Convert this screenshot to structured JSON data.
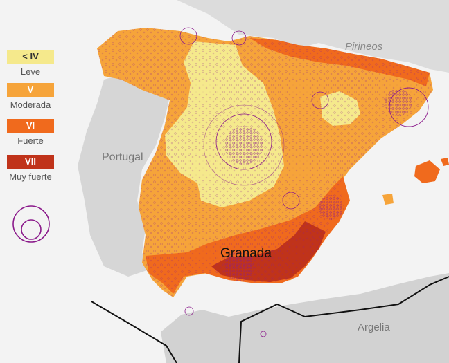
{
  "legend": {
    "items": [
      {
        "code": "< IV",
        "label": "Leve",
        "color": "#f5e98c",
        "text_color": "#333333"
      },
      {
        "code": "V",
        "label": "Moderada",
        "color": "#f6a43a",
        "text_color": "#ffffff"
      },
      {
        "code": "VI",
        "label": "Fuerte",
        "color": "#f06a1d",
        "text_color": "#ffffff"
      },
      {
        "code": "VII",
        "label": "Muy fuerte",
        "color": "#c0331a",
        "text_color": "#ffffff"
      }
    ],
    "circle_symbol_color": "#8b1a8b"
  },
  "places": {
    "pirineos": "Pirineos",
    "portugal": "Portugal",
    "granada": "Granada",
    "argelia": "Argelia"
  },
  "colors": {
    "land_bg": "#d9d9d9",
    "sea": "#f3f3f3",
    "epicenter": "#8b1a8b",
    "border": "#111111"
  }
}
